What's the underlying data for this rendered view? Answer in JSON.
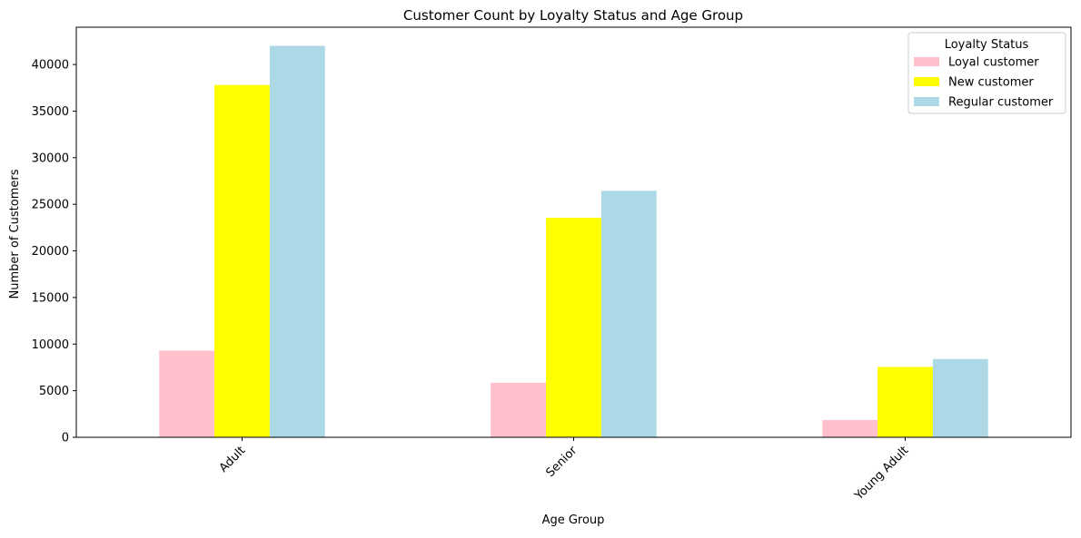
{
  "chart_data": {
    "type": "bar",
    "title": "Customer Count by Loyalty Status and Age Group",
    "xlabel": "Age Group",
    "ylabel": "Number of Customers",
    "categories": [
      "Adult",
      "Senior",
      "Young Adult"
    ],
    "ylim": [
      0,
      44000
    ],
    "yticks": [
      0,
      5000,
      10000,
      15000,
      20000,
      25000,
      30000,
      35000,
      40000
    ],
    "grid": false,
    "legend": {
      "title": "Loyalty Status",
      "placement": "top-right"
    },
    "series": [
      {
        "name": "Loyal customer",
        "color": "#ffc0cb",
        "values": [
          9300,
          5850,
          1850
        ]
      },
      {
        "name": "New customer",
        "color": "#ffff00",
        "values": [
          37800,
          23550,
          7550
        ]
      },
      {
        "name": "Regular customer",
        "color": "#add8e6",
        "values": [
          42000,
          26450,
          8400
        ]
      }
    ]
  }
}
